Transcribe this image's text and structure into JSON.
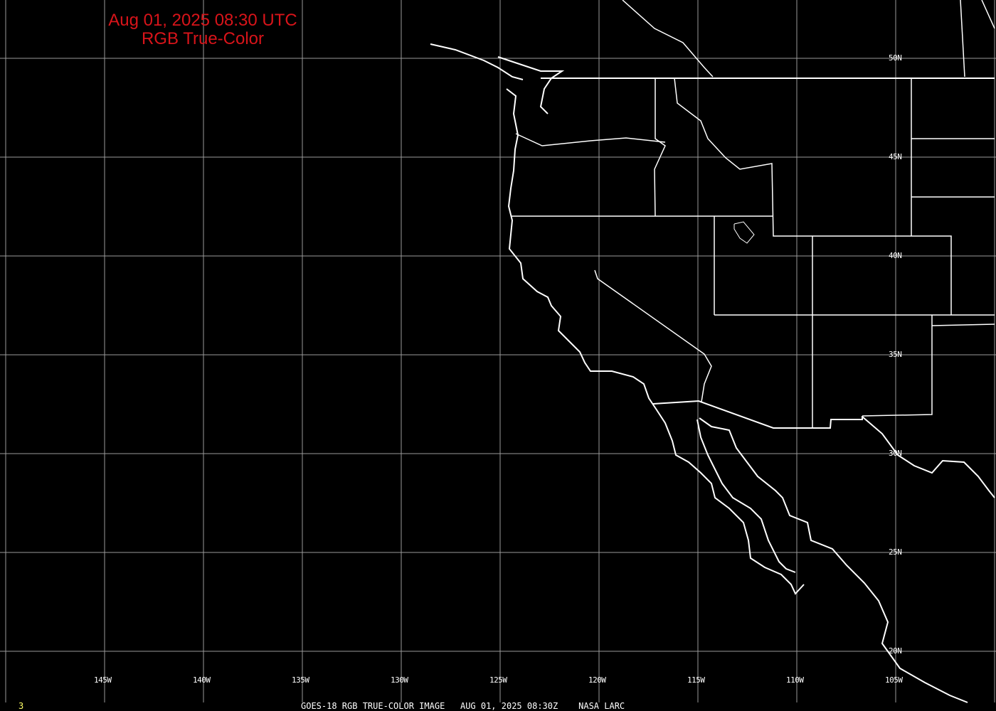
{
  "title": {
    "line1": "Aug 01, 2025 08:30 UTC",
    "line2": "RGB True-Color"
  },
  "lon_labels": [
    "145W",
    "140W",
    "135W",
    "130W",
    "125W",
    "120W",
    "115W",
    "110W",
    "105W"
  ],
  "lat_labels": [
    "50N",
    "45N",
    "40N",
    "35N",
    "30N",
    "25N",
    "20N"
  ],
  "footer": {
    "frame": "3",
    "caption": "GOES-18 RGB TRUE-COLOR IMAGE   AUG 01, 2025 08:30Z    NASA LARC"
  },
  "colors": {
    "title": "#d8141a",
    "grid": "#9a9a9a",
    "coast": "#ffffff",
    "frame": "#ffff66"
  }
}
